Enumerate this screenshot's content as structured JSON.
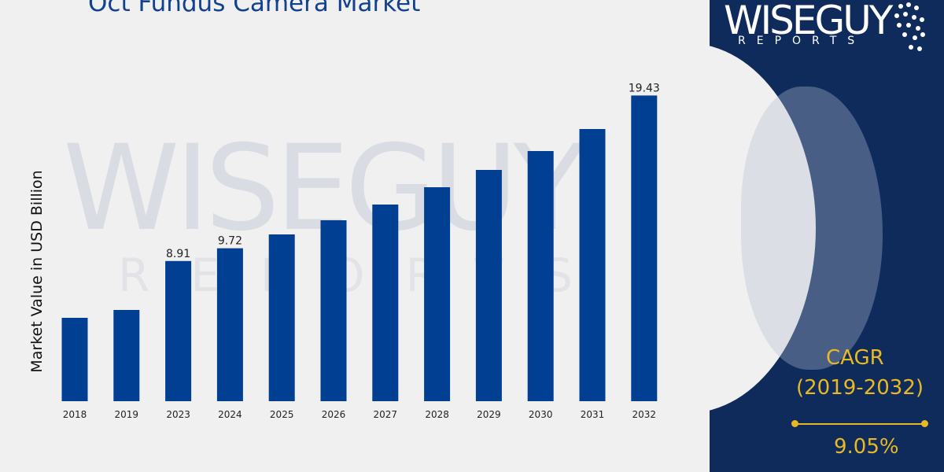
{
  "colors": {
    "background": "#f0f0f0",
    "bar": "#003f91",
    "title": "#12418f",
    "panel": "#0f2b5c",
    "cagr": "#e8b923"
  },
  "watermark": {
    "main": "WISEGUY",
    "sub": "REPORTS"
  },
  "logo": {
    "main": "WISEGUY",
    "sub": "REPORTS"
  },
  "cagr": {
    "label": "CAGR",
    "period": "(2019-2032)",
    "value": "9.05%"
  },
  "chart_data": {
    "type": "bar",
    "title": "Oct Fundus Camera Market",
    "xlabel": "",
    "ylabel": "Market Value in USD Billion",
    "categories": [
      "2018",
      "2019",
      "2023",
      "2024",
      "2025",
      "2026",
      "2027",
      "2028",
      "2029",
      "2030",
      "2031",
      "2032"
    ],
    "values": [
      5.3,
      5.8,
      8.91,
      9.72,
      10.6,
      11.5,
      12.5,
      13.6,
      14.7,
      15.9,
      17.3,
      19.43
    ],
    "data_labels": {
      "2023": "8.91",
      "2024": "9.72",
      "2032": "19.43"
    },
    "ylim": [
      0,
      20
    ],
    "grid": false,
    "legend": "none"
  }
}
